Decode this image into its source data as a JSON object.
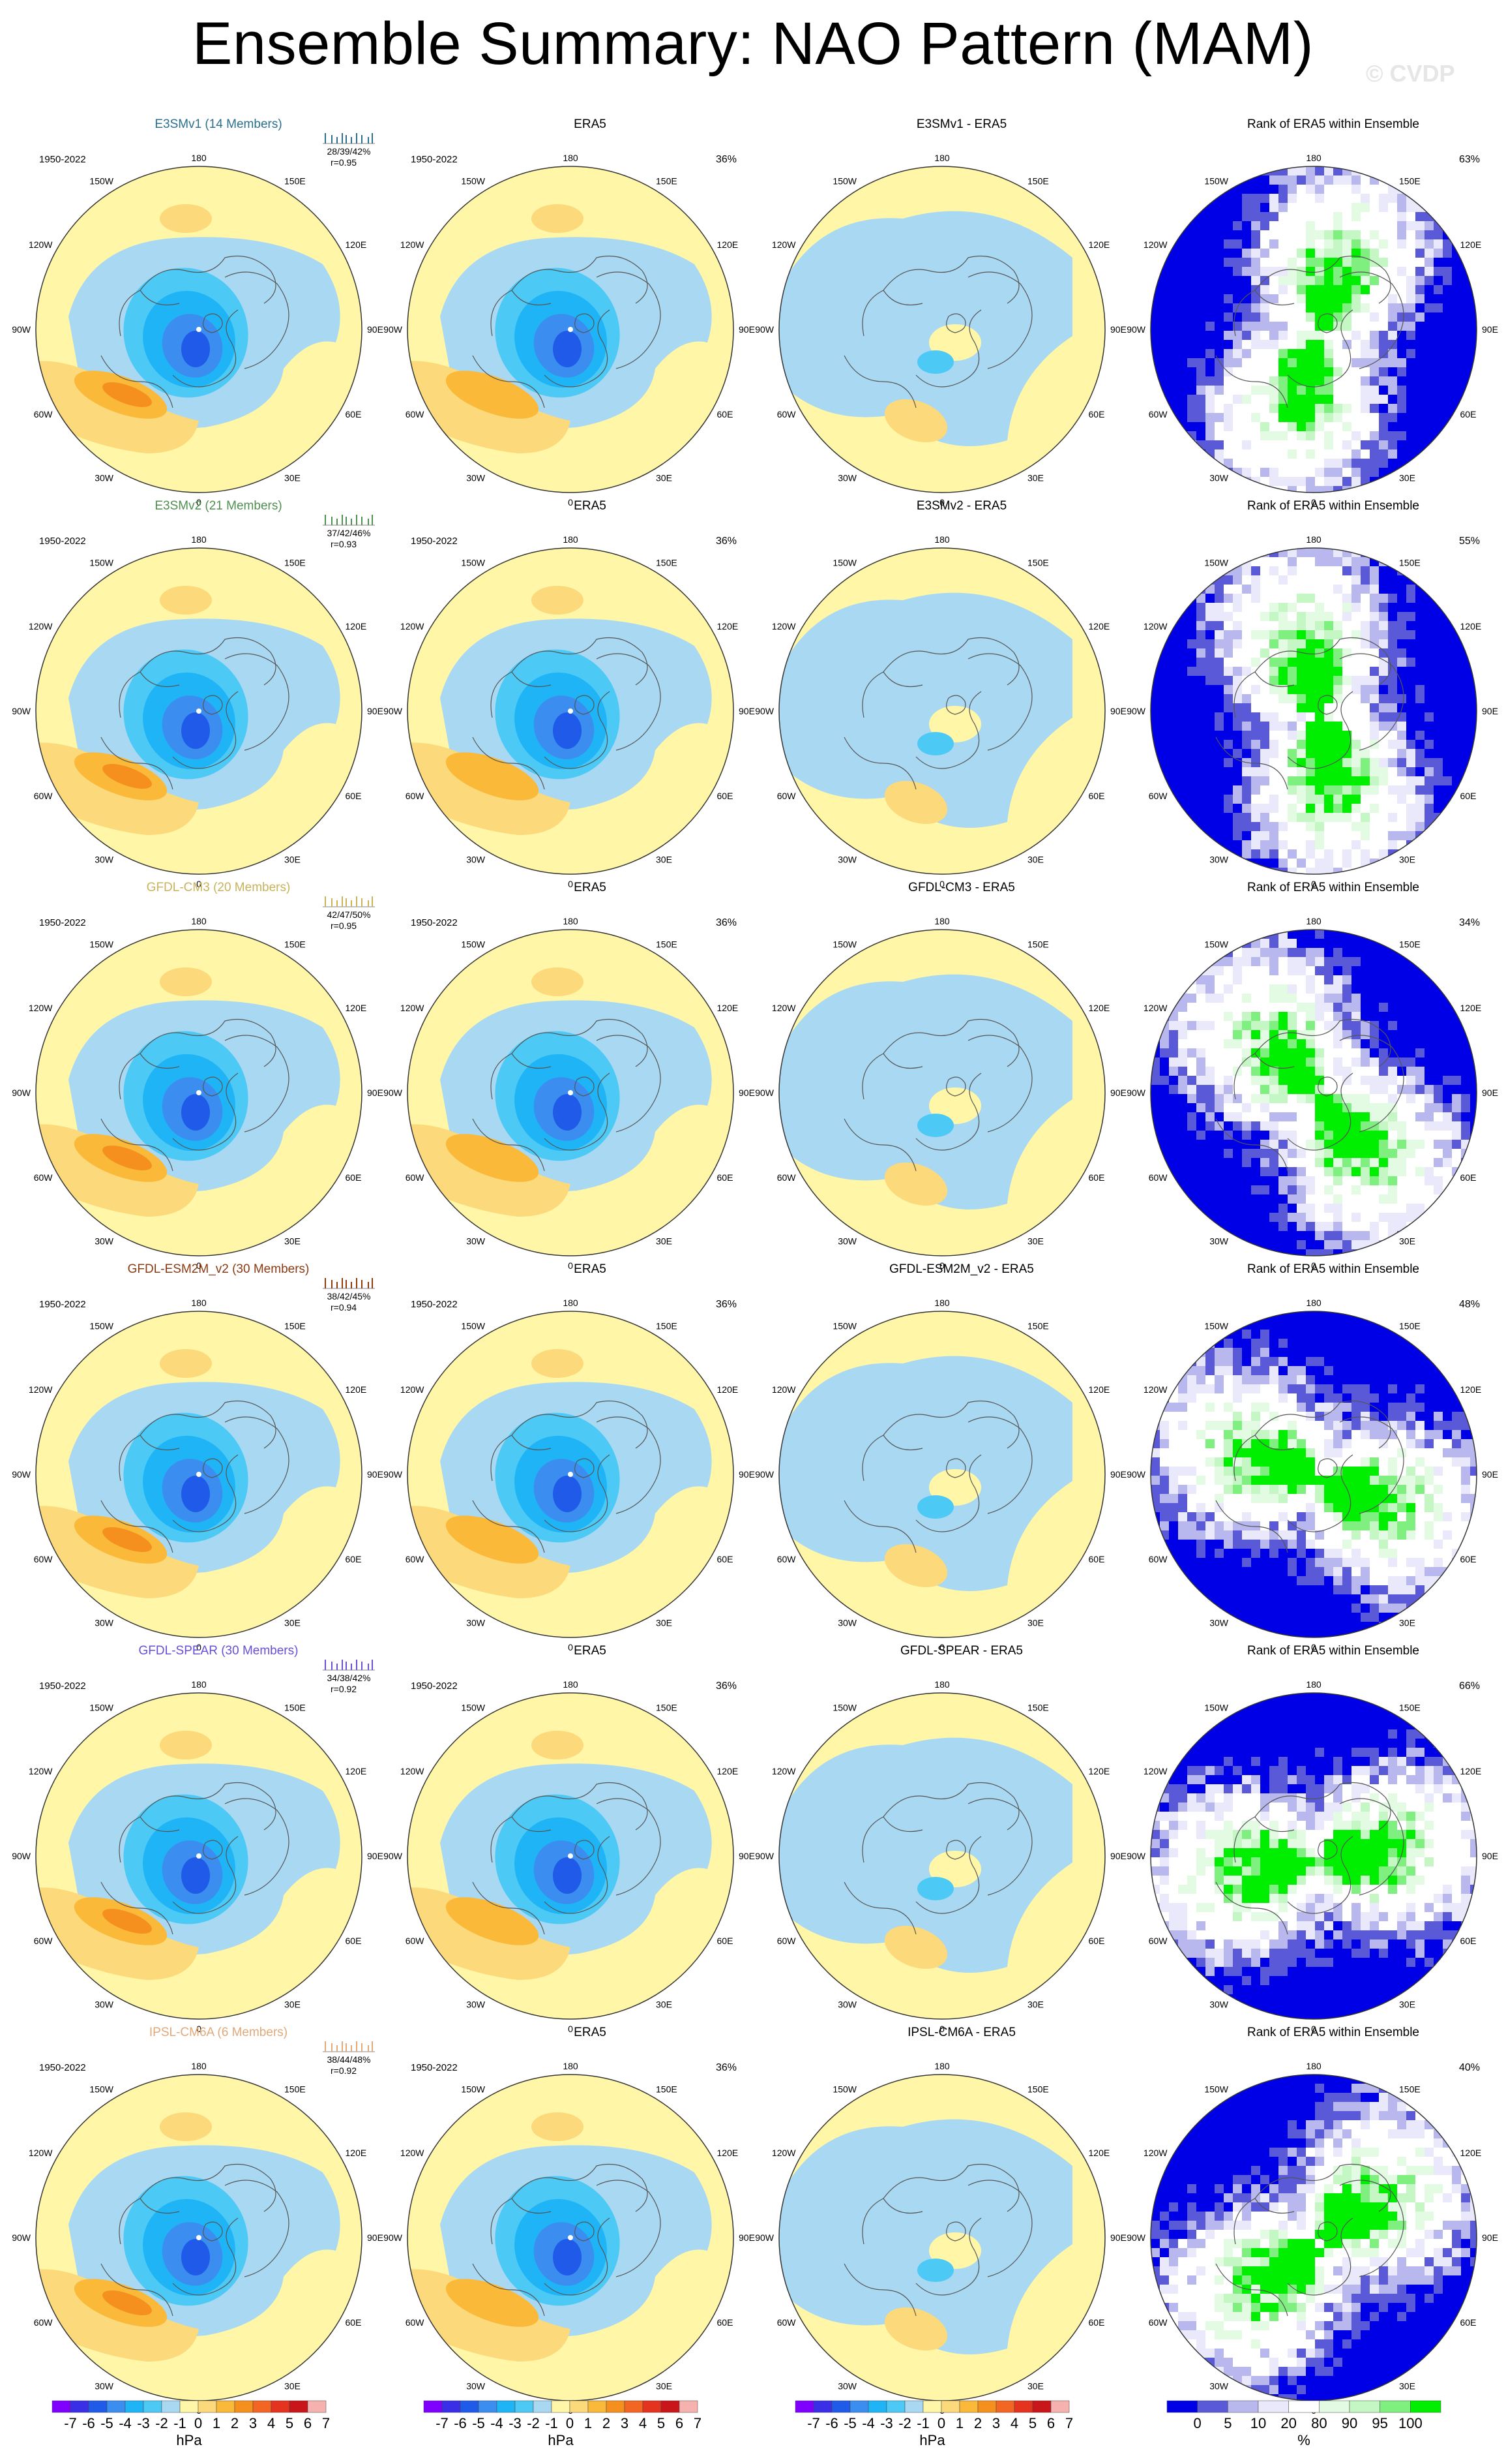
{
  "page": {
    "title": "Ensemble Summary: NAO Pattern (MAM)",
    "watermark": "© CVDP"
  },
  "lon_labels": {
    "n": "180",
    "s": "0",
    "w": "90W",
    "e": "90E",
    "w1": "150W",
    "w2": "120W",
    "w4": "60W",
    "w5": "30W",
    "e1": "150E",
    "e2": "120E",
    "e4": "60E",
    "e5": "30E"
  },
  "colors": {
    "neg": [
      "#7f00ff",
      "#3a2fe6",
      "#1f5be8",
      "#3b8ef0",
      "#1fb4f5",
      "#4dc9f6",
      "#a9d8f2"
    ],
    "pos": [
      "#fff6a8",
      "#fcd97a",
      "#fab938",
      "#f5901f",
      "#f26522",
      "#e4331f",
      "#c8161a",
      "#f5b2ae"
    ],
    "rank": [
      "#0000e6",
      "#5a5ad8",
      "#b8b8ee",
      "#e9e9fb",
      "#ffffff",
      "#e3fbe3",
      "#c4f7c4",
      "#7ff07f",
      "#00ee00"
    ]
  },
  "colorbars": {
    "hpa": {
      "labels": [
        "-7",
        "-6",
        "-5",
        "-4",
        "-3",
        "-2",
        "-1",
        "0",
        "1",
        "2",
        "3",
        "4",
        "5",
        "6",
        "7"
      ],
      "unit": "hPa"
    },
    "rank": {
      "labels": [
        "0",
        "5",
        "10",
        "20",
        "80",
        "90",
        "95",
        "100"
      ],
      "unit": "%"
    }
  },
  "rows": [
    {
      "model": {
        "title": "E3SMv1 (14 Members)",
        "color": "#2b6f8f",
        "period": "1950-2022",
        "stats": "28/39/42%",
        "r": "r=0.95"
      },
      "era5": {
        "title": "ERA5",
        "period": "1950-2022",
        "pct": "36%"
      },
      "diff": {
        "title": "E3SMv1 - ERA5"
      },
      "rank": {
        "title": "Rank of ERA5 within Ensemble",
        "pct": "63%"
      }
    },
    {
      "model": {
        "title": "E3SMv2 (21 Members)",
        "color": "#4f8f4f",
        "period": "1950-2022",
        "stats": "37/42/46%",
        "r": "r=0.93"
      },
      "era5": {
        "title": "ERA5",
        "period": "1950-2022",
        "pct": "36%"
      },
      "diff": {
        "title": "E3SMv2 - ERA5"
      },
      "rank": {
        "title": "Rank of ERA5 within Ensemble",
        "pct": "55%"
      }
    },
    {
      "model": {
        "title": "GFDL-CM3 (20 Members)",
        "color": "#c9b35a",
        "period": "1950-2022",
        "stats": "42/47/50%",
        "r": "r=0.95"
      },
      "era5": {
        "title": "ERA5",
        "period": "1950-2022",
        "pct": "36%"
      },
      "diff": {
        "title": "GFDL-CM3 - ERA5"
      },
      "rank": {
        "title": "Rank of ERA5 within Ensemble",
        "pct": "34%"
      }
    },
    {
      "model": {
        "title": "GFDL-ESM2M_v2 (30 Members)",
        "color": "#8b3a12",
        "period": "1950-2022",
        "stats": "38/42/45%",
        "r": "r=0.94"
      },
      "era5": {
        "title": "ERA5",
        "period": "1950-2022",
        "pct": "36%"
      },
      "diff": {
        "title": "GFDL-ESM2M_v2 - ERA5"
      },
      "rank": {
        "title": "Rank of ERA5 within Ensemble",
        "pct": "48%"
      }
    },
    {
      "model": {
        "title": "GFDL-SPEAR (30 Members)",
        "color": "#6a4fd6",
        "period": "1950-2022",
        "stats": "34/38/42%",
        "r": "r=0.92"
      },
      "era5": {
        "title": "ERA5",
        "period": "1950-2022",
        "pct": "36%"
      },
      "diff": {
        "title": "GFDL-SPEAR - ERA5"
      },
      "rank": {
        "title": "Rank of ERA5 within Ensemble",
        "pct": "66%"
      }
    },
    {
      "model": {
        "title": "IPSL-CM6A (6 Members)",
        "color": "#e0a97a",
        "period": "1950-2022",
        "stats": "38/44/48%",
        "r": "r=0.92"
      },
      "era5": {
        "title": "ERA5",
        "period": "1950-2022",
        "pct": "36%"
      },
      "diff": {
        "title": "IPSL-CM6A - ERA5"
      },
      "rank": {
        "title": "Rank of ERA5 within Ensemble",
        "pct": "40%"
      }
    }
  ]
}
